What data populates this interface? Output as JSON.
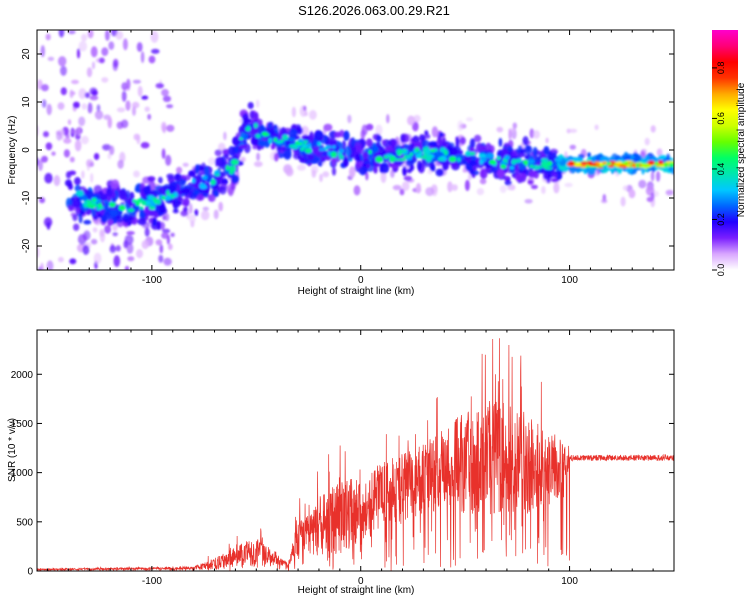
{
  "title": "S126.2026.063.00.29.R21",
  "chart_data": [
    {
      "type": "heatmap",
      "name": "spectrogram",
      "xlabel": "Height of straight line (km)",
      "ylabel": "Frequency (Hz)",
      "xlim": [
        -155,
        150
      ],
      "ylim": [
        -25,
        25
      ],
      "x_ticks": [
        -100,
        0,
        100
      ],
      "y_ticks": [
        -20,
        -10,
        0,
        10,
        20
      ],
      "colorbar": {
        "label": "Normalized spectral amplitude",
        "range": [
          0,
          0.95
        ],
        "ticks": [
          0.0,
          0.2,
          0.4,
          0.6,
          0.8
        ],
        "tick_labels": [
          "0.0",
          "0.2",
          "0.4",
          "0.6",
          "0.8"
        ],
        "colors": [
          "#ffffff",
          "#d9a6ff",
          "#7a1fff",
          "#2200ff",
          "#0066ff",
          "#00c8ff",
          "#00e6b0",
          "#00ff66",
          "#66ff00",
          "#ccff00",
          "#ffff00",
          "#ffaa00",
          "#ff3300",
          "#ff0000",
          "#ff0077",
          "#ff00cc"
        ]
      },
      "ridge": [
        {
          "x": -135,
          "y": -10
        },
        {
          "x": -120,
          "y": -12
        },
        {
          "x": -100,
          "y": -11
        },
        {
          "x": -85,
          "y": -8
        },
        {
          "x": -70,
          "y": -6
        },
        {
          "x": -60,
          "y": -3
        },
        {
          "x": -55,
          "y": 5
        },
        {
          "x": -45,
          "y": 3
        },
        {
          "x": -30,
          "y": 1
        },
        {
          "x": -15,
          "y": 0
        },
        {
          "x": 0,
          "y": -1
        },
        {
          "x": 20,
          "y": -1
        },
        {
          "x": 40,
          "y": -1
        },
        {
          "x": 60,
          "y": -2
        },
        {
          "x": 80,
          "y": -3
        },
        {
          "x": 100,
          "y": -3
        },
        {
          "x": 120,
          "y": -3
        },
        {
          "x": 148,
          "y": -3
        }
      ]
    },
    {
      "type": "line",
      "name": "snr",
      "xlabel": "Height of straight line (km)",
      "ylabel": "SNR (10 * v/v)",
      "xlim": [
        -155,
        150
      ],
      "ylim": [
        0,
        2450
      ],
      "x_ticks": [
        -100,
        0,
        100
      ],
      "y_ticks": [
        0,
        500,
        1000,
        1500,
        2000
      ],
      "color": "#e8312b",
      "series": [
        {
          "name": "envelope_mean",
          "x": [
            -155,
            -80,
            -70,
            -60,
            -50,
            -40,
            -35,
            -30,
            -20,
            -10,
            0,
            10,
            20,
            30,
            40,
            50,
            60,
            70,
            80,
            90,
            98,
            100,
            120,
            150
          ],
          "y": [
            15,
            30,
            60,
            150,
            200,
            120,
            60,
            300,
            450,
            500,
            600,
            700,
            800,
            900,
            1000,
            1050,
            1100,
            1100,
            1050,
            1000,
            1000,
            1150,
            1150,
            1150
          ]
        },
        {
          "name": "envelope_peak",
          "x": [
            -155,
            -80,
            -70,
            -60,
            -50,
            -40,
            -35,
            -30,
            -20,
            -10,
            0,
            10,
            20,
            30,
            40,
            50,
            60,
            70,
            80,
            90,
            98,
            100,
            120,
            150
          ],
          "y": [
            30,
            60,
            200,
            350,
            500,
            250,
            100,
            700,
            1200,
            1300,
            1400,
            1500,
            1600,
            1700,
            1900,
            2200,
            2400,
            2350,
            2200,
            1800,
            1650,
            1200,
            1220,
            1230
          ]
        }
      ]
    }
  ]
}
